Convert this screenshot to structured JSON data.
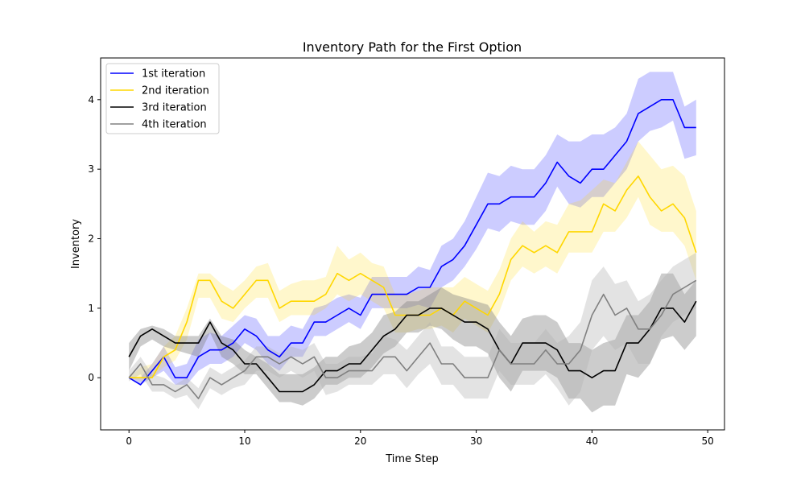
{
  "chart_data": {
    "type": "line",
    "title": "Inventory Path for the First Option",
    "xlabel": "Time Step",
    "ylabel": "Inventory",
    "xlim": [
      -2.45,
      51.45
    ],
    "ylim": [
      -0.75,
      4.6
    ],
    "xticks": [
      0,
      10,
      20,
      30,
      40,
      50
    ],
    "yticks": [
      0,
      1,
      2,
      3,
      4
    ],
    "xtick_labels": [
      "0",
      "10",
      "20",
      "30",
      "40",
      "50"
    ],
    "ytick_labels": [
      "0",
      "1",
      "2",
      "3",
      "4"
    ],
    "grid": false,
    "legend_position": "upper-left",
    "series": [
      {
        "name": "1st iteration",
        "color": "#0000ff",
        "band_color": "#0000ff",
        "x": [
          0,
          1,
          2,
          3,
          4,
          5,
          6,
          7,
          8,
          9,
          10,
          11,
          12,
          13,
          14,
          15,
          16,
          17,
          18,
          19,
          20,
          21,
          22,
          23,
          24,
          25,
          26,
          27,
          28,
          29,
          30,
          31,
          32,
          33,
          34,
          35,
          36,
          37,
          38,
          39,
          40,
          41,
          42,
          43,
          44,
          45,
          46,
          47,
          48,
          49
        ],
        "mean": [
          0,
          -0.1,
          0.1,
          0.3,
          0,
          0,
          0.3,
          0.4,
          0.4,
          0.5,
          0.7,
          0.6,
          0.4,
          0.3,
          0.5,
          0.5,
          0.8,
          0.8,
          0.9,
          1.0,
          0.9,
          1.2,
          1.2,
          1.2,
          1.2,
          1.3,
          1.3,
          1.6,
          1.7,
          1.9,
          2.2,
          2.5,
          2.5,
          2.6,
          2.6,
          2.6,
          2.8,
          3.1,
          2.9,
          2.8,
          3.0,
          3.0,
          3.2,
          3.4,
          3.8,
          3.9,
          4.0,
          4.0,
          3.6,
          3.6
        ],
        "lower": [
          0,
          -0.1,
          0,
          0.1,
          -0.1,
          -0.1,
          0.1,
          0.2,
          0.2,
          0.3,
          0.5,
          0.4,
          0.2,
          0.1,
          0.3,
          0.3,
          0.6,
          0.6,
          0.7,
          0.8,
          0.7,
          1.0,
          1.0,
          1.0,
          1.0,
          1.05,
          1.0,
          1.3,
          1.4,
          1.6,
          1.85,
          2.15,
          2.1,
          2.25,
          2.2,
          2.2,
          2.4,
          2.75,
          2.5,
          2.45,
          2.6,
          2.6,
          2.8,
          3.0,
          3.4,
          3.55,
          3.6,
          3.7,
          3.15,
          3.2
        ],
        "upper": [
          0,
          0,
          0.2,
          0.45,
          0.15,
          0.2,
          0.55,
          0.65,
          0.6,
          0.75,
          0.9,
          0.85,
          0.6,
          0.6,
          0.75,
          0.7,
          1.0,
          1.05,
          1.15,
          1.2,
          1.15,
          1.45,
          1.45,
          1.45,
          1.45,
          1.6,
          1.55,
          1.9,
          2.0,
          2.25,
          2.6,
          2.95,
          2.9,
          3.05,
          3.0,
          3.0,
          3.2,
          3.5,
          3.4,
          3.4,
          3.5,
          3.5,
          3.6,
          3.8,
          4.3,
          4.4,
          4.4,
          4.4,
          3.9,
          4.0
        ]
      },
      {
        "name": "2nd iteration",
        "color": "#ffd700",
        "band_color": "#ffd700",
        "x": [
          0,
          1,
          2,
          3,
          4,
          5,
          6,
          7,
          8,
          9,
          10,
          11,
          12,
          13,
          14,
          15,
          16,
          17,
          18,
          19,
          20,
          21,
          22,
          23,
          24,
          25,
          26,
          27,
          28,
          29,
          30,
          31,
          32,
          33,
          34,
          35,
          36,
          37,
          38,
          39,
          40,
          41,
          42,
          43,
          44,
          45,
          46,
          47,
          48,
          49
        ],
        "mean": [
          0,
          0,
          0,
          0.3,
          0.4,
          0.8,
          1.4,
          1.4,
          1.1,
          1.0,
          1.2,
          1.4,
          1.4,
          1.0,
          1.1,
          1.1,
          1.1,
          1.2,
          1.5,
          1.4,
          1.5,
          1.4,
          1.3,
          0.9,
          0.9,
          0.9,
          0.9,
          1.0,
          0.9,
          1.1,
          1.0,
          0.9,
          1.2,
          1.7,
          1.9,
          1.8,
          1.9,
          1.8,
          2.1,
          2.1,
          2.1,
          2.5,
          2.4,
          2.7,
          2.9,
          2.6,
          2.4,
          2.5,
          2.3,
          1.8
        ],
        "lower": [
          0,
          -0.05,
          0,
          0.15,
          0.25,
          0.55,
          1.15,
          1.15,
          0.85,
          0.8,
          1.0,
          1.15,
          1.15,
          0.8,
          0.9,
          0.9,
          0.9,
          1.0,
          1.2,
          1.1,
          1.2,
          1.1,
          1.0,
          0.65,
          0.65,
          0.7,
          0.7,
          0.75,
          0.65,
          0.85,
          0.75,
          0.65,
          0.95,
          1.4,
          1.6,
          1.5,
          1.6,
          1.5,
          1.8,
          1.8,
          1.8,
          2.1,
          2.1,
          2.3,
          2.6,
          2.2,
          2.1,
          2.1,
          1.9,
          1.4
        ],
        "upper": [
          0,
          0.15,
          0.2,
          0.45,
          0.6,
          1.0,
          1.5,
          1.5,
          1.35,
          1.25,
          1.4,
          1.6,
          1.65,
          1.25,
          1.35,
          1.4,
          1.4,
          1.45,
          1.9,
          1.7,
          1.8,
          1.65,
          1.6,
          1.2,
          1.2,
          1.25,
          1.3,
          1.3,
          1.3,
          1.45,
          1.35,
          1.25,
          1.55,
          2.0,
          2.25,
          2.1,
          2.25,
          2.2,
          2.5,
          2.55,
          2.7,
          2.85,
          2.8,
          3.1,
          3.4,
          3.2,
          3.0,
          3.05,
          2.9,
          2.4
        ]
      },
      {
        "name": "3rd iteration",
        "color": "#000000",
        "band_color": "#808080",
        "x": [
          0,
          1,
          2,
          3,
          4,
          5,
          6,
          7,
          8,
          9,
          10,
          11,
          12,
          13,
          14,
          15,
          16,
          17,
          18,
          19,
          20,
          21,
          22,
          23,
          24,
          25,
          26,
          27,
          28,
          29,
          30,
          31,
          32,
          33,
          34,
          35,
          36,
          37,
          38,
          39,
          40,
          41,
          42,
          43,
          44,
          45,
          46,
          47,
          48,
          49
        ],
        "mean": [
          0.3,
          0.6,
          0.7,
          0.6,
          0.5,
          0.5,
          0.5,
          0.8,
          0.5,
          0.4,
          0.2,
          0.2,
          0,
          -0.2,
          -0.2,
          -0.2,
          -0.1,
          0.1,
          0.1,
          0.2,
          0.2,
          0.4,
          0.6,
          0.7,
          0.9,
          0.9,
          1.0,
          1.0,
          0.9,
          0.8,
          0.8,
          0.7,
          0.4,
          0.2,
          0.5,
          0.5,
          0.5,
          0.4,
          0.1,
          0.1,
          0,
          0.1,
          0.1,
          0.5,
          0.5,
          0.7,
          1.0,
          1.0,
          0.8,
          1.1
        ],
        "lower": [
          0.1,
          0.45,
          0.55,
          0.45,
          0.4,
          0.35,
          0.3,
          0.65,
          0.3,
          0.2,
          0.05,
          0.05,
          -0.15,
          -0.35,
          -0.35,
          -0.4,
          -0.3,
          -0.1,
          -0.1,
          0,
          0,
          0.15,
          0.35,
          0.45,
          0.65,
          0.65,
          0.75,
          0.7,
          0.55,
          0.45,
          0.45,
          0.35,
          0,
          -0.2,
          0.1,
          0.1,
          0.1,
          0,
          -0.3,
          -0.3,
          -0.5,
          -0.4,
          -0.4,
          0.05,
          0,
          0.2,
          0.55,
          0.6,
          0.4,
          0.6
        ],
        "upper": [
          0.5,
          0.7,
          0.75,
          0.7,
          0.6,
          0.6,
          0.6,
          0.85,
          0.6,
          0.55,
          0.4,
          0.3,
          0.2,
          0.05,
          0.05,
          0.05,
          0.15,
          0.3,
          0.3,
          0.45,
          0.5,
          0.65,
          0.9,
          0.95,
          1.1,
          1.1,
          1.2,
          1.3,
          1.2,
          1.15,
          1.1,
          1.05,
          0.8,
          0.6,
          0.85,
          0.9,
          0.9,
          0.8,
          0.5,
          0.5,
          0.4,
          0.5,
          0.55,
          0.9,
          0.9,
          1.1,
          1.5,
          1.5,
          1.2,
          1.4
        ]
      },
      {
        "name": "4th iteration",
        "color": "#808080",
        "band_color": "#b0b0b0",
        "x": [
          0,
          1,
          2,
          3,
          4,
          5,
          6,
          7,
          8,
          9,
          10,
          11,
          12,
          13,
          14,
          15,
          16,
          17,
          18,
          19,
          20,
          21,
          22,
          23,
          24,
          25,
          26,
          27,
          28,
          29,
          30,
          31,
          32,
          33,
          34,
          35,
          36,
          37,
          38,
          39,
          40,
          41,
          42,
          43,
          44,
          45,
          46,
          47,
          48,
          49
        ],
        "mean": [
          0,
          0.2,
          -0.1,
          -0.1,
          -0.2,
          -0.1,
          -0.3,
          0,
          -0.1,
          0,
          0.1,
          0.3,
          0.3,
          0.2,
          0.3,
          0.2,
          0.3,
          0,
          0,
          0.1,
          0.1,
          0.1,
          0.3,
          0.3,
          0.1,
          0.3,
          0.5,
          0.2,
          0.2,
          0,
          0,
          0,
          0.4,
          0.2,
          0.2,
          0.2,
          0.4,
          0.2,
          0.2,
          0.4,
          0.9,
          1.2,
          0.9,
          1.0,
          0.7,
          0.7,
          0.9,
          1.2,
          1.3,
          1.4
        ],
        "lower": [
          -0.05,
          0.05,
          -0.2,
          -0.2,
          -0.3,
          -0.25,
          -0.45,
          -0.15,
          -0.25,
          -0.15,
          -0.1,
          0.1,
          0.1,
          0,
          0.1,
          0,
          0.1,
          -0.25,
          -0.2,
          -0.1,
          -0.1,
          -0.1,
          0.05,
          0.05,
          -0.15,
          0.05,
          0.2,
          -0.1,
          -0.1,
          -0.3,
          -0.3,
          -0.3,
          0.1,
          -0.1,
          -0.1,
          -0.1,
          0.05,
          -0.15,
          -0.4,
          -0.2,
          0.4,
          0.6,
          0.4,
          0.5,
          0.2,
          0.2,
          0.6,
          0.8,
          0.9,
          1.0
        ],
        "upper": [
          0.1,
          0.3,
          0.05,
          0,
          -0.1,
          0,
          -0.15,
          0.15,
          0.05,
          0.15,
          0.25,
          0.45,
          0.45,
          0.35,
          0.45,
          0.4,
          0.5,
          0.2,
          0.2,
          0.3,
          0.3,
          0.35,
          0.6,
          0.55,
          0.4,
          0.6,
          0.8,
          0.45,
          0.45,
          0.3,
          0.3,
          0.3,
          0.7,
          0.5,
          0.5,
          0.5,
          0.7,
          0.5,
          0.6,
          0.8,
          1.4,
          1.6,
          1.35,
          1.4,
          1.1,
          1.2,
          1.4,
          1.6,
          1.7,
          1.8
        ]
      }
    ]
  }
}
